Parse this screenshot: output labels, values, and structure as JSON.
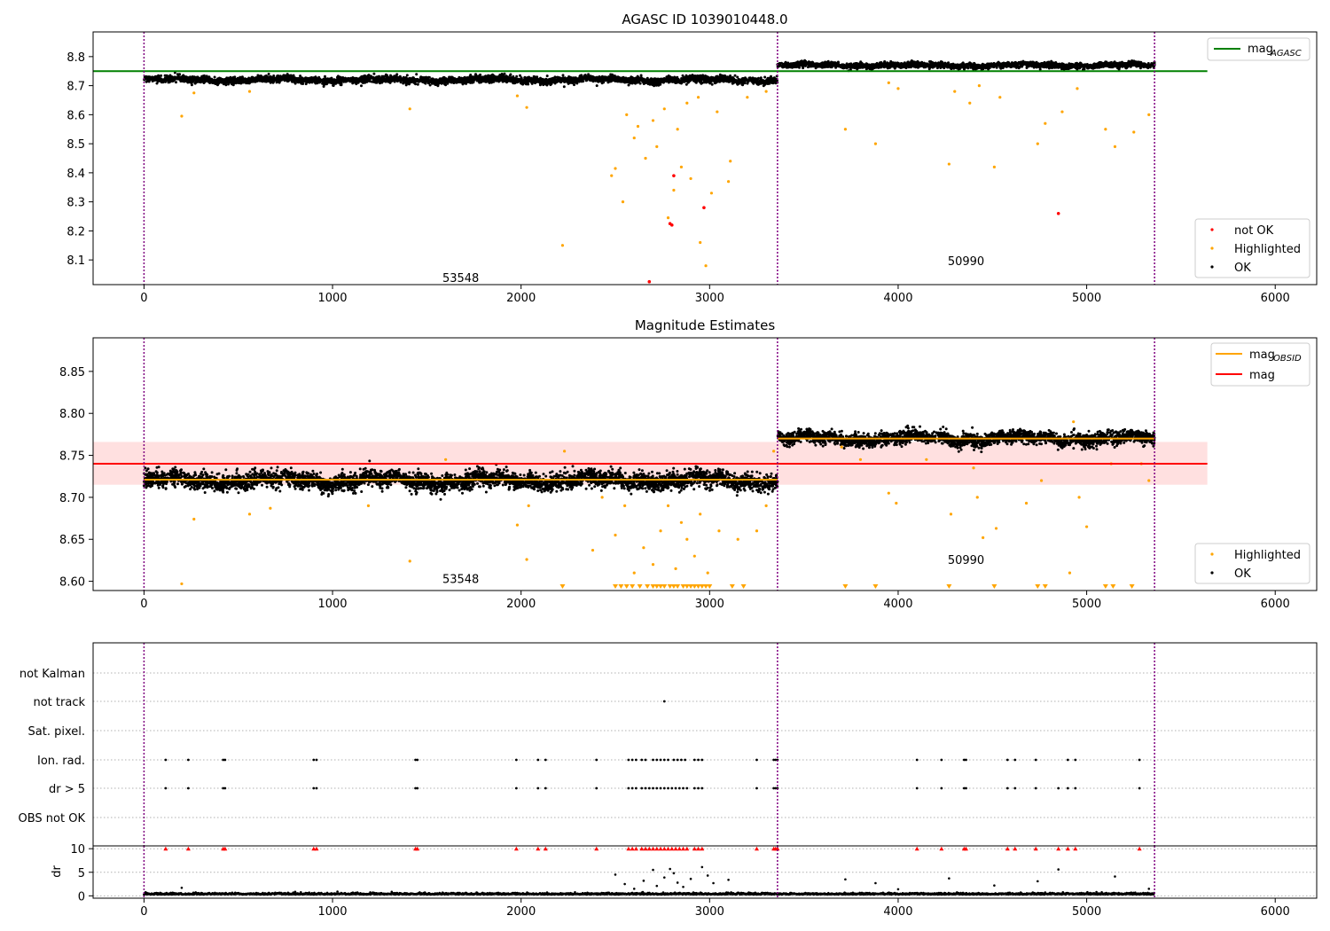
{
  "chart_data": [
    {
      "type": "scatter",
      "title": "AGASC ID 1039010448.0",
      "xlim": [
        -270,
        6220
      ],
      "ylim": [
        8.015,
        8.885
      ],
      "yticks": [
        8.1,
        8.2,
        8.3,
        8.4,
        8.5,
        8.6,
        8.7,
        8.8
      ],
      "xticks": [
        0,
        1000,
        2000,
        3000,
        4000,
        5000,
        6000
      ],
      "obs_boundaries": [
        0,
        3360,
        5360
      ],
      "obs_labels": [
        {
          "text": "53548",
          "x": 1680,
          "y": 8.04
        },
        {
          "text": "50990",
          "x": 4360,
          "y": 8.097
        }
      ],
      "mag_agasc": {
        "value": 8.75,
        "x_range": [
          -270,
          5640
        ],
        "color": "#008000"
      },
      "series": [
        {
          "name": "OK",
          "color": "#000000",
          "segments": [
            {
              "x_range": [
                0,
                3360
              ],
              "mean": 8.72,
              "spread": 0.01
            },
            {
              "x_range": [
                3360,
                5360
              ],
              "mean": 8.77,
              "spread": 0.008
            }
          ]
        },
        {
          "name": "Highlighted",
          "color": "#ffa500",
          "points": [
            [
              200,
              8.595
            ],
            [
              265,
              8.675
            ],
            [
              560,
              8.68
            ],
            [
              1410,
              8.62
            ],
            [
              1980,
              8.665
            ],
            [
              2030,
              8.625
            ],
            [
              2220,
              8.15
            ],
            [
              2480,
              8.39
            ],
            [
              2500,
              8.415
            ],
            [
              2540,
              8.3
            ],
            [
              2600,
              8.52
            ],
            [
              2660,
              8.45
            ],
            [
              2720,
              8.49
            ],
            [
              2780,
              8.245
            ],
            [
              2810,
              8.34
            ],
            [
              2850,
              8.42
            ],
            [
              2900,
              8.38
            ],
            [
              2950,
              8.16
            ],
            [
              2980,
              8.08
            ],
            [
              3010,
              8.33
            ],
            [
              3100,
              8.37
            ],
            [
              3110,
              8.44
            ],
            [
              2560,
              8.6
            ],
            [
              2620,
              8.56
            ],
            [
              2700,
              8.58
            ],
            [
              2760,
              8.62
            ],
            [
              2830,
              8.55
            ],
            [
              2880,
              8.64
            ],
            [
              2940,
              8.66
            ],
            [
              3040,
              8.61
            ],
            [
              3200,
              8.66
            ],
            [
              3300,
              8.68
            ],
            [
              3720,
              8.55
            ],
            [
              3880,
              8.5
            ],
            [
              3950,
              8.71
            ],
            [
              4000,
              8.69
            ],
            [
              4270,
              8.43
            ],
            [
              4300,
              8.68
            ],
            [
              4380,
              8.64
            ],
            [
              4430,
              8.7
            ],
            [
              4510,
              8.42
            ],
            [
              4540,
              8.66
            ],
            [
              4740,
              8.5
            ],
            [
              4780,
              8.57
            ],
            [
              4870,
              8.61
            ],
            [
              4950,
              8.69
            ],
            [
              5100,
              8.55
            ],
            [
              5150,
              8.49
            ],
            [
              5250,
              8.54
            ],
            [
              5330,
              8.6
            ]
          ]
        },
        {
          "name": "not OK",
          "color": "#ff0000",
          "points": [
            [
              2680,
              8.025
            ],
            [
              2790,
              8.225
            ],
            [
              2800,
              8.22
            ],
            [
              2810,
              8.39
            ],
            [
              2970,
              8.28
            ],
            [
              4850,
              8.26
            ]
          ]
        }
      ],
      "legend": {
        "entries": [
          {
            "label": "not OK",
            "color": "#ff0000"
          },
          {
            "label": "Highlighted",
            "color": "#ffa500"
          },
          {
            "label": "OK",
            "color": "#000000"
          }
        ],
        "line_label": "mag",
        "line_sub": "AGASC"
      }
    },
    {
      "type": "scatter",
      "title": "Magnitude Estimates",
      "xlim": [
        -270,
        6220
      ],
      "ylim": [
        8.589,
        8.89
      ],
      "yticks": [
        8.6,
        8.65,
        8.7,
        8.75,
        8.8,
        8.85
      ],
      "xticks": [
        0,
        1000,
        2000,
        3000,
        4000,
        5000,
        6000
      ],
      "obs_boundaries": [
        0,
        3360,
        5360
      ],
      "obs_labels": [
        {
          "text": "53548",
          "x": 1680,
          "y": 8.603
        },
        {
          "text": "50990",
          "x": 4360,
          "y": 8.626
        }
      ],
      "mag": {
        "value": 8.74,
        "band": [
          8.715,
          8.766
        ],
        "x_range": [
          -270,
          5640
        ],
        "color": "#ff0000"
      },
      "mag_obsid": [
        {
          "x_range": [
            0,
            3360
          ],
          "value": 8.721
        },
        {
          "x_range": [
            3360,
            5360
          ],
          "value": 8.77
        }
      ],
      "series": [
        {
          "name": "OK",
          "color": "#000000",
          "segments": [
            {
              "x_range": [
                0,
                3360
              ],
              "mean": 8.72,
              "spread": 0.009
            },
            {
              "x_range": [
                3360,
                5360
              ],
              "mean": 8.77,
              "spread": 0.007
            }
          ]
        },
        {
          "name": "Highlighted",
          "color": "#ffa500",
          "points": [
            [
              200,
              8.597
            ],
            [
              265,
              8.674
            ],
            [
              560,
              8.68
            ],
            [
              670,
              8.687
            ],
            [
              1190,
              8.69
            ],
            [
              1410,
              8.624
            ],
            [
              1600,
              8.745
            ],
            [
              1980,
              8.667
            ],
            [
              2030,
              8.626
            ],
            [
              2040,
              8.69
            ],
            [
              2230,
              8.755
            ],
            [
              2380,
              8.637
            ],
            [
              2430,
              8.7
            ],
            [
              2500,
              8.655
            ],
            [
              2550,
              8.69
            ],
            [
              2600,
              8.61
            ],
            [
              2650,
              8.64
            ],
            [
              2700,
              8.62
            ],
            [
              2740,
              8.66
            ],
            [
              2780,
              8.69
            ],
            [
              2820,
              8.615
            ],
            [
              2850,
              8.67
            ],
            [
              2880,
              8.65
            ],
            [
              2920,
              8.63
            ],
            [
              2950,
              8.68
            ],
            [
              2990,
              8.61
            ],
            [
              3050,
              8.66
            ],
            [
              3150,
              8.65
            ],
            [
              3250,
              8.66
            ],
            [
              3300,
              8.69
            ],
            [
              3340,
              8.755
            ],
            [
              3700,
              8.76
            ],
            [
              3800,
              8.745
            ],
            [
              3950,
              8.705
            ],
            [
              3990,
              8.693
            ],
            [
              4150,
              8.745
            ],
            [
              4280,
              8.68
            ],
            [
              4400,
              8.735
            ],
            [
              4420,
              8.7
            ],
            [
              4450,
              8.652
            ],
            [
              4520,
              8.663
            ],
            [
              4680,
              8.693
            ],
            [
              4760,
              8.72
            ],
            [
              4910,
              8.61
            ],
            [
              4960,
              8.7
            ],
            [
              5000,
              8.665
            ],
            [
              5130,
              8.74
            ],
            [
              5290,
              8.74
            ],
            [
              5330,
              8.72
            ],
            [
              4930,
              8.79
            ]
          ]
        },
        {
          "name": "Highlighted (below range)",
          "color": "#ffa500",
          "markers": [
            2220,
            2500,
            2530,
            2560,
            2590,
            2630,
            2670,
            2700,
            2720,
            2740,
            2760,
            2790,
            2810,
            2830,
            2860,
            2880,
            2900,
            2920,
            2940,
            2960,
            2980,
            3000,
            3120,
            3180,
            3720,
            3880,
            4270,
            4510,
            4740,
            4780,
            5100,
            5140,
            5240
          ]
        }
      ],
      "legend": {
        "entries": [
          {
            "label": "Highlighted",
            "color": "#ffa500"
          },
          {
            "label": "OK",
            "color": "#000000"
          }
        ],
        "line_entries": [
          {
            "label": "mag",
            "sub": "OBSID",
            "color": "#ffa500"
          },
          {
            "label": "mag",
            "sub": "",
            "color": "#ff0000"
          }
        ]
      }
    },
    {
      "type": "scatter",
      "title": "",
      "xlim": [
        -270,
        6220
      ],
      "rows": [
        "not Kalman",
        "not track",
        "Sat. pixel.",
        "Ion. rad.",
        "dr > 5",
        "OBS not OK"
      ],
      "obs_boundaries": [
        0,
        3360,
        5360
      ],
      "flags": {
        "not track": [
          2760
        ],
        "Ion. rad.": [
          115,
          235,
          420,
          430,
          900,
          915,
          1440,
          1450,
          1975,
          2090,
          2130,
          2400,
          2570,
          2590,
          2610,
          2640,
          2660,
          2700,
          2720,
          2740,
          2760,
          2780,
          2810,
          2830,
          2850,
          2870,
          2920,
          2940,
          2960,
          3250,
          3340,
          3350,
          3360,
          4100,
          4230,
          4350,
          4360,
          4580,
          4620,
          4730,
          4900,
          4940,
          5280
        ],
        "dr > 5": [
          115,
          235,
          420,
          430,
          900,
          915,
          1440,
          1450,
          1975,
          2090,
          2130,
          2400,
          2570,
          2590,
          2610,
          2640,
          2660,
          2680,
          2700,
          2720,
          2740,
          2760,
          2780,
          2800,
          2820,
          2840,
          2860,
          2880,
          2920,
          2940,
          2960,
          3250,
          3340,
          3350,
          3360,
          4100,
          4230,
          4350,
          4360,
          4580,
          4620,
          4730,
          4850,
          4900,
          4940,
          5280
        ]
      },
      "dr": {
        "ylabel": "dr",
        "yticks": [
          0,
          5,
          10
        ],
        "ylim": [
          -0.5,
          10.6
        ],
        "ok_baseline": 0.3,
        "ok_spread": 0.25,
        "clipped": [
          115,
          235,
          420,
          430,
          900,
          915,
          1440,
          1450,
          1975,
          2090,
          2130,
          2400,
          2570,
          2590,
          2610,
          2640,
          2660,
          2680,
          2700,
          2720,
          2740,
          2760,
          2780,
          2800,
          2820,
          2840,
          2860,
          2880,
          2920,
          2940,
          2960,
          3250,
          3340,
          3350,
          3360,
          4100,
          4230,
          4350,
          4360,
          4580,
          4620,
          4730,
          4850,
          4900,
          4940,
          5280
        ],
        "outliers": [
          [
            200,
            1.7
          ],
          [
            2500,
            4.5
          ],
          [
            2550,
            2.5
          ],
          [
            2600,
            1.5
          ],
          [
            2650,
            3.2
          ],
          [
            2700,
            5.5
          ],
          [
            2720,
            2.1
          ],
          [
            2760,
            3.9
          ],
          [
            2790,
            5.7
          ],
          [
            2810,
            4.8
          ],
          [
            2830,
            2.8
          ],
          [
            2860,
            1.9
          ],
          [
            2900,
            3.6
          ],
          [
            2960,
            6.1
          ],
          [
            2990,
            4.3
          ],
          [
            3020,
            2.7
          ],
          [
            3100,
            3.4
          ],
          [
            3720,
            3.5
          ],
          [
            3880,
            2.7
          ],
          [
            4000,
            1.4
          ],
          [
            4270,
            3.7
          ],
          [
            4510,
            2.2
          ],
          [
            4740,
            3.1
          ],
          [
            4850,
            5.6
          ],
          [
            5150,
            4.1
          ],
          [
            5330,
            1.5
          ]
        ],
        "clipped_color": "#ff0000",
        "ok_color": "#000000"
      },
      "xticks": [
        0,
        1000,
        2000,
        3000,
        4000,
        5000,
        6000
      ]
    }
  ]
}
